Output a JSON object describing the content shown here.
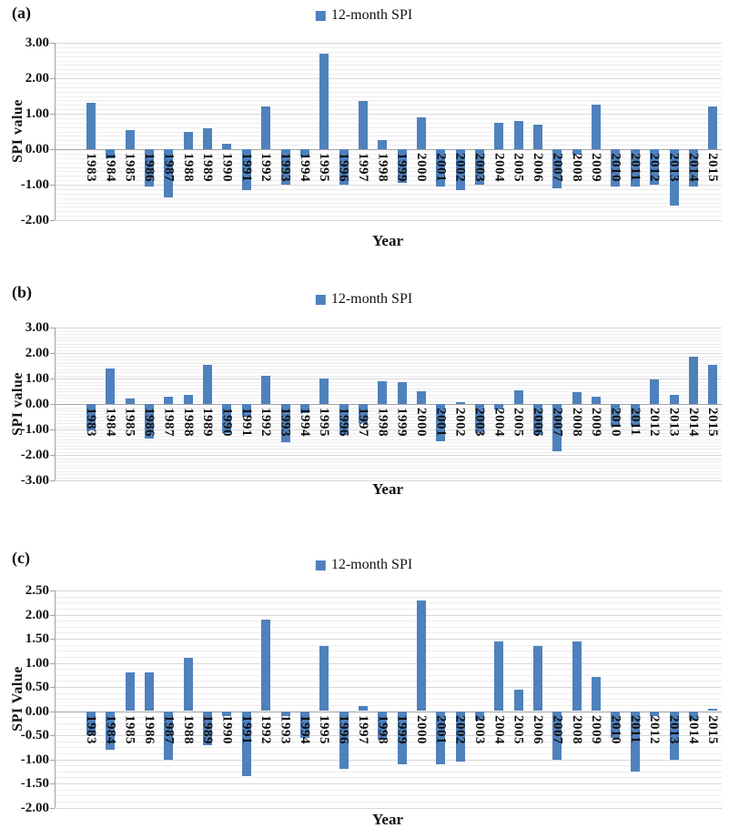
{
  "colors": {
    "bar": "#4f81bd",
    "grid_minor": "#ececec",
    "grid_major": "#d7d7d7",
    "axis_line": "#a3a3a3",
    "text": "#111111"
  },
  "chart_data": [
    {
      "type": "bar",
      "panel_label": "(a)",
      "legend": "12-month SPI",
      "title": "",
      "ylabel": "SPI value",
      "xlabel": "Year",
      "ylim": [
        -2.0,
        3.0
      ],
      "ytick_step": 1.0,
      "ytick_labels": [
        "3.00",
        "2.00",
        "1.00",
        "0.00",
        "-1.00",
        "-2.00"
      ],
      "grid": true,
      "legend_position": "top-center",
      "categories": [
        "1983",
        "1984",
        "1985",
        "1986",
        "1987",
        "1988",
        "1989",
        "1990",
        "1991",
        "1992",
        "1993",
        "1994",
        "1995",
        "1996",
        "1997",
        "1998",
        "1999",
        "2000",
        "2001",
        "2002",
        "2003",
        "2004",
        "2005",
        "2006",
        "2007",
        "2008",
        "2009",
        "2010",
        "2011",
        "2012",
        "2013",
        "2014",
        "2015"
      ],
      "values": [
        1.3,
        -0.25,
        0.55,
        -1.05,
        -1.35,
        0.5,
        0.6,
        0.15,
        -1.15,
        1.2,
        -1.0,
        -0.2,
        2.7,
        -1.0,
        1.35,
        0.25,
        -0.95,
        0.9,
        -1.05,
        -1.15,
        -1.0,
        0.75,
        0.8,
        0.7,
        -1.1,
        -0.15,
        1.25,
        -1.05,
        -1.05,
        -1.0,
        -1.6,
        -1.05,
        1.2
      ]
    },
    {
      "type": "bar",
      "panel_label": "(b)",
      "legend": "12-month SPI",
      "title": "",
      "ylabel": "SPI value",
      "xlabel": "Year",
      "ylim": [
        -3.0,
        3.0
      ],
      "ytick_step": 1.0,
      "ytick_labels": [
        "3.00",
        "2.00",
        "1.00",
        "0.00",
        "-1.00",
        "-2.00",
        "-3.00"
      ],
      "grid": true,
      "legend_position": "top-center",
      "categories": [
        "1983",
        "1984",
        "1985",
        "1986",
        "1987",
        "1988",
        "1989",
        "1990",
        "1991",
        "1992",
        "1993",
        "1994",
        "1995",
        "1996",
        "1997",
        "1998",
        "1999",
        "2000",
        "2001",
        "2002",
        "2003",
        "2004",
        "2005",
        "2006",
        "2007",
        "2008",
        "2009",
        "2010",
        "2011",
        "2012",
        "2013",
        "2014",
        "2015"
      ],
      "values": [
        -1.05,
        1.4,
        0.2,
        -1.35,
        0.3,
        0.35,
        1.55,
        -1.15,
        -0.5,
        1.1,
        -1.5,
        -0.35,
        1.0,
        -1.2,
        -0.75,
        0.9,
        0.85,
        0.5,
        -1.45,
        0.05,
        -1.15,
        -0.2,
        0.55,
        -1.2,
        -1.85,
        0.45,
        0.3,
        -0.9,
        -0.85,
        0.95,
        0.35,
        1.85,
        1.55
      ]
    },
    {
      "type": "bar",
      "panel_label": "(c)",
      "legend": "12-month SPI",
      "title": "",
      "ylabel": "SPI Value",
      "xlabel": "Year",
      "ylim": [
        -2.0,
        2.5
      ],
      "ytick_step": 0.5,
      "ytick_labels": [
        "2.50",
        "2.00",
        "1.50",
        "1.00",
        "0.50",
        "0.00",
        "-0.50",
        "-1.00",
        "-1.50",
        "-2.00"
      ],
      "grid": true,
      "legend_position": "top-center",
      "categories": [
        "1983",
        "1984",
        "1985",
        "1986",
        "1987",
        "1988",
        "1989",
        "1990",
        "1991",
        "1992",
        "1993",
        "1994",
        "1995",
        "1996",
        "1997",
        "1998",
        "1999",
        "2000",
        "2001",
        "2002",
        "2003",
        "2004",
        "2005",
        "2006",
        "2007",
        "2008",
        "2009",
        "2010",
        "2011",
        "2012",
        "2013",
        "2014",
        "2015"
      ],
      "values": [
        -0.5,
        -0.8,
        0.8,
        0.8,
        -1.0,
        1.1,
        -0.7,
        -0.1,
        -1.35,
        1.9,
        -0.1,
        -0.55,
        1.35,
        -1.2,
        0.1,
        -0.6,
        -1.1,
        2.3,
        -1.1,
        -1.05,
        -0.2,
        1.45,
        0.45,
        1.35,
        -1.0,
        1.45,
        0.7,
        -0.55,
        -1.25,
        -0.1,
        -1.0,
        -0.2,
        0.05
      ]
    }
  ]
}
